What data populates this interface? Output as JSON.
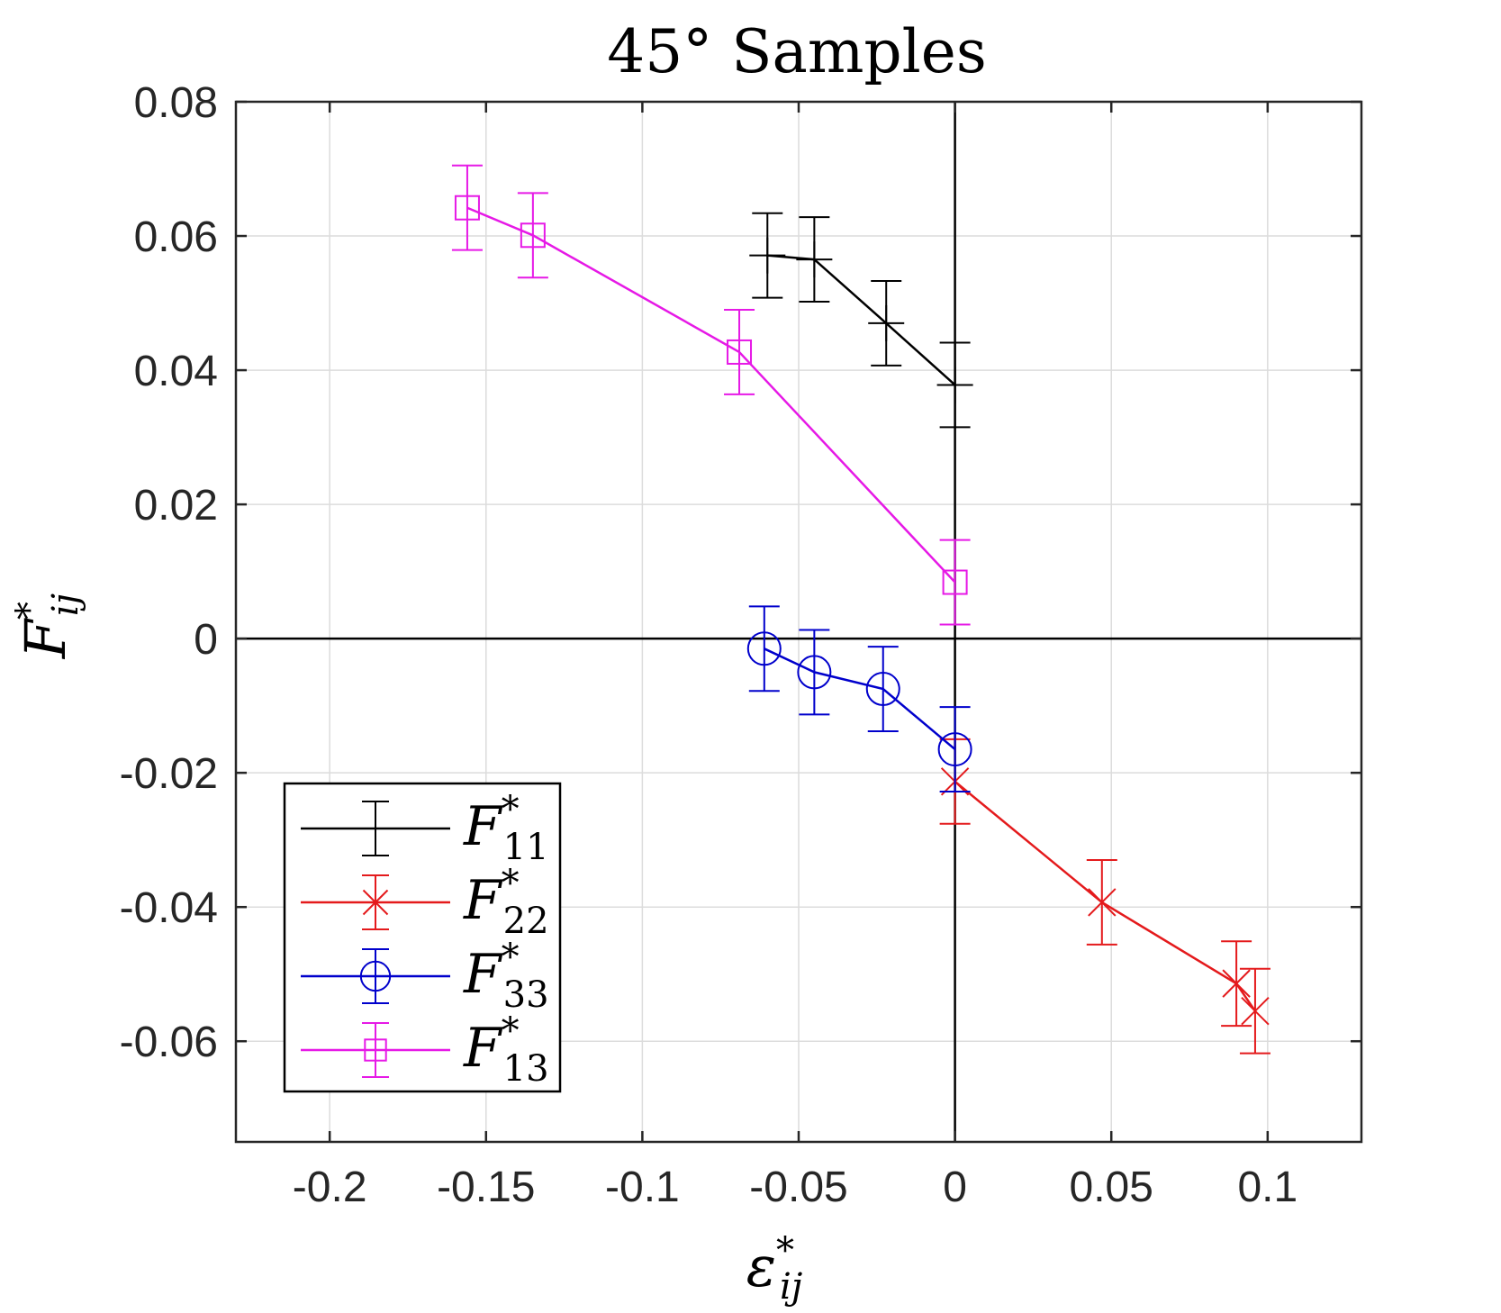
{
  "chart_data": {
    "type": "line",
    "title": "45° Samples",
    "xlabel": {
      "base": "ε",
      "sup": "*",
      "sub": "ij"
    },
    "ylabel": {
      "base": "F",
      "sup": "*",
      "sub": "ij"
    },
    "xlim": [
      -0.23,
      0.13
    ],
    "ylim": [
      -0.075,
      0.08
    ],
    "xticks": [
      -0.2,
      -0.15,
      -0.1,
      -0.05,
      0,
      0.05,
      0.1
    ],
    "xtick_labels": [
      "-0.2",
      "-0.15",
      "-0.1",
      "-0.05",
      "0",
      "0.05",
      "0.1"
    ],
    "yticks": [
      0.08,
      0.06,
      0.04,
      0.02,
      0,
      -0.02,
      -0.04,
      -0.06
    ],
    "ytick_labels": [
      "0.08",
      "0.06",
      "0.04",
      "0.02",
      "0",
      "-0.02",
      "-0.04",
      "-0.06"
    ],
    "grid": true,
    "zero_lines": true,
    "legend_position": "bottom-left",
    "series": [
      {
        "name": "F11",
        "label_base": "F",
        "label_sup": "*",
        "label_sub": "11",
        "color": "#000000",
        "marker": "plus",
        "x": [
          -0.06,
          -0.045,
          -0.022,
          0.0
        ],
        "y": [
          0.0571,
          0.0565,
          0.047,
          0.0378
        ],
        "err": [
          0.0063,
          0.0063,
          0.0063,
          0.0063
        ]
      },
      {
        "name": "F22",
        "label_base": "F",
        "label_sup": "*",
        "label_sub": "22",
        "color": "#e41a1c",
        "marker": "x",
        "x": [
          0.0,
          0.047,
          0.09,
          0.096
        ],
        "y": [
          -0.0213,
          -0.0393,
          -0.0514,
          -0.0555
        ],
        "err": [
          0.0063,
          0.0063,
          0.0063,
          0.0063
        ]
      },
      {
        "name": "F33",
        "label_base": "F",
        "label_sup": "*",
        "label_sub": "33",
        "color": "#0000cc",
        "marker": "circle",
        "x": [
          -0.061,
          -0.045,
          -0.023,
          0.0
        ],
        "y": [
          -0.0015,
          -0.005,
          -0.0075,
          -0.0165
        ],
        "err": [
          0.0063,
          0.0063,
          0.0063,
          0.0063
        ]
      },
      {
        "name": "F13",
        "label_base": "F",
        "label_sup": "*",
        "label_sub": "13",
        "color": "#e619e6",
        "marker": "square",
        "x": [
          -0.156,
          -0.135,
          -0.069,
          0.0
        ],
        "y": [
          0.0642,
          0.0601,
          0.0427,
          0.0084
        ],
        "err": [
          0.0063,
          0.0063,
          0.0063,
          0.0063
        ]
      }
    ]
  }
}
